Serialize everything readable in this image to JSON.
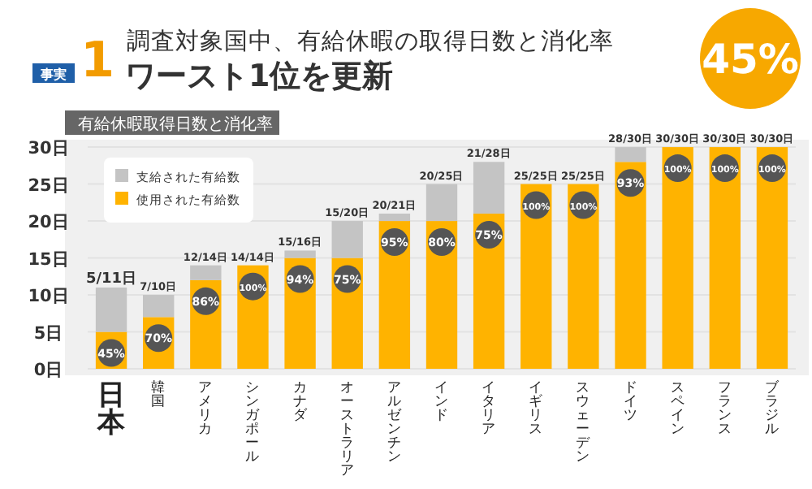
{
  "chart_data": {
    "type": "bar",
    "title": "調査対象国中、有給休暇の取得日数と消化率",
    "subtitle": "ワースト1位を更新",
    "annotations": [
      "事実",
      "1",
      "45%",
      "有給休暇取得日数と消化率",
      {
        "text": "45%",
        "x": "日本",
        "y": 5
      },
      {
        "text": "70%",
        "x": "韓国",
        "y": 7
      },
      {
        "text": "86%",
        "x": "アメリカ",
        "y": 12
      },
      {
        "text": "100%",
        "x": "シンガポール",
        "y": 14
      },
      {
        "text": "94%",
        "x": "カナダ",
        "y": 15
      },
      {
        "text": "75%",
        "x": "オーストラリア",
        "y": 15
      },
      {
        "text": "95%",
        "x": "アルゼンチン",
        "y": 20
      },
      {
        "text": "80%",
        "x": "インド",
        "y": 20
      },
      {
        "text": "75%",
        "x": "イタリア",
        "y": 21
      },
      {
        "text": "100%",
        "x": "イギリス",
        "y": 25
      },
      {
        "text": "100%",
        "x": "スウェーデン",
        "y": 25
      },
      {
        "text": "93%",
        "x": "ドイツ",
        "y": 28
      },
      {
        "text": "100%",
        "x": "スペイン",
        "y": 30
      },
      {
        "text": "100%",
        "x": "フランス",
        "y": 30
      },
      {
        "text": "100%",
        "x": "ブラジル",
        "y": 30
      }
    ],
    "categories": [
      "日本",
      "韓国",
      "アメリカ",
      "シンガポール",
      "カナダ",
      "オーストラリア",
      "アルゼンチン",
      "インド",
      "イタリア",
      "イギリス",
      "スウェーデン",
      "ドイツ",
      "スペイン",
      "フランス",
      "ブラジル"
    ],
    "stacked": true,
    "series": [
      {
        "name": "使用された有給数",
        "color": "#ffb300",
        "values": [
          5,
          7,
          12,
          14,
          15,
          15,
          20,
          20,
          21,
          25,
          25,
          28,
          30,
          30,
          30
        ]
      },
      {
        "name": "支給された有給数",
        "color": "#c4c4c4",
        "values": [
          6,
          3,
          2,
          0,
          1,
          5,
          1,
          5,
          7,
          0,
          0,
          2,
          0,
          0,
          0
        ]
      }
    ],
    "totals": [
      "5/11日",
      "7/10日",
      "12/14日",
      "14/14日",
      "15/16日",
      "15/20日",
      "20/21日",
      "20/25日",
      "21/28日",
      "25/25日",
      "25/25日",
      "28/30日",
      "30/30日",
      "30/30日",
      "30/30日"
    ],
    "ylim": [
      0,
      31
    ],
    "yticks": [
      {
        "value": 0,
        "label": "0日"
      },
      {
        "value": 5,
        "label": "5日"
      },
      {
        "value": 10,
        "label": "10日"
      },
      {
        "value": 15,
        "label": "15日"
      },
      {
        "value": 20,
        "label": "20日"
      },
      {
        "value": 25,
        "label": "25日"
      },
      {
        "value": 30,
        "label": "30日"
      }
    ],
    "grid": "y",
    "legend": "top left"
  }
}
